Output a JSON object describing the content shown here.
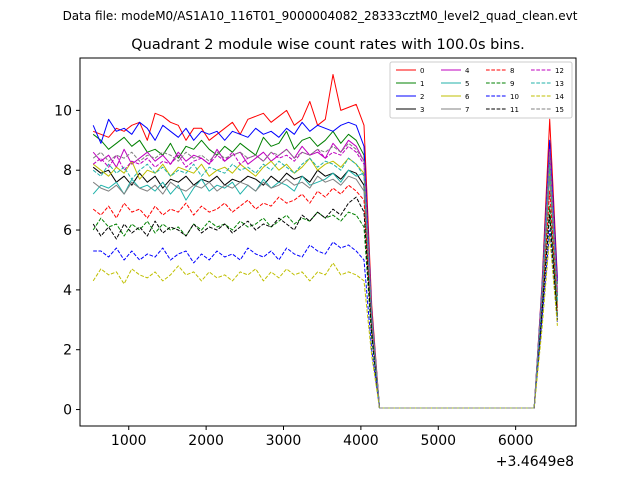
{
  "chart_data": {
    "type": "line",
    "suptitle": "Data file: modeM0/AS1A10_116T01_9000004082_28333cztM0_level2_quad_clean.evt",
    "title": "Quadrant 2 module wise count rates with 100.0s bins.",
    "xlabel": "",
    "ylabel": "",
    "x_offset_label": "+3.4649e8",
    "xlim": [
      370,
      6780
    ],
    "ylim": [
      -0.55,
      11.75
    ],
    "xticks": [
      1000,
      2000,
      3000,
      4000,
      5000,
      6000
    ],
    "yticks": [
      0,
      2,
      4,
      6,
      8,
      10
    ],
    "legend_position": "upper-right",
    "legend_columns": 4,
    "x": [
      540,
      640,
      740,
      840,
      940,
      1040,
      1140,
      1240,
      1340,
      1440,
      1540,
      1640,
      1740,
      1840,
      1940,
      2040,
      2140,
      2240,
      2340,
      2440,
      2540,
      2640,
      2740,
      2840,
      2940,
      3040,
      3140,
      3240,
      3340,
      3440,
      3540,
      3640,
      3740,
      3840,
      3940,
      4040,
      4140,
      4240,
      4340,
      4440,
      4540,
      4640,
      4740,
      4840,
      4940,
      5040,
      5140,
      5240,
      5340,
      5440,
      5540,
      5640,
      5740,
      5840,
      5940,
      6040,
      6140,
      6240,
      6340,
      6440,
      6540
    ],
    "series": [
      {
        "name": "0",
        "color": "#ff0000",
        "dash": "solid",
        "values": [
          9.3,
          9.2,
          9.1,
          9.4,
          9.3,
          9.5,
          9.6,
          9.0,
          9.9,
          9.8,
          9.6,
          9.5,
          9.0,
          9.4,
          9.4,
          9.0,
          9.2,
          9.4,
          9.6,
          9.2,
          9.7,
          9.8,
          9.9,
          9.6,
          9.8,
          10.0,
          9.5,
          9.7,
          10.3,
          9.5,
          9.7,
          11.2,
          10.0,
          10.1,
          10.2,
          9.5,
          3.5,
          0.05,
          0.05,
          0.05,
          0.05,
          0.05,
          0.05,
          0.05,
          0.05,
          0.05,
          0.05,
          0.05,
          0.05,
          0.05,
          0.05,
          0.05,
          0.05,
          0.05,
          0.05,
          0.05,
          0.05,
          0.05,
          4.2,
          9.7,
          4.4
        ]
      },
      {
        "name": "1",
        "color": "#008000",
        "dash": "solid",
        "values": [
          9.2,
          9.0,
          8.7,
          8.9,
          9.1,
          8.8,
          9.0,
          8.6,
          8.7,
          8.5,
          8.9,
          8.4,
          8.8,
          8.7,
          9.0,
          8.7,
          8.5,
          8.8,
          8.6,
          8.9,
          8.7,
          8.5,
          9.1,
          8.8,
          8.9,
          9.3,
          8.7,
          9.0,
          9.1,
          8.8,
          9.0,
          9.3,
          8.9,
          9.2,
          9.0,
          8.5,
          3.2,
          0.05,
          0.05,
          0.05,
          0.05,
          0.05,
          0.05,
          0.05,
          0.05,
          0.05,
          0.05,
          0.05,
          0.05,
          0.05,
          0.05,
          0.05,
          0.05,
          0.05,
          0.05,
          0.05,
          0.05,
          0.05,
          4.0,
          8.9,
          4.2
        ]
      },
      {
        "name": "2",
        "color": "#0000ff",
        "dash": "solid",
        "values": [
          9.5,
          8.9,
          9.7,
          9.3,
          9.4,
          9.2,
          9.6,
          9.4,
          9.0,
          9.5,
          9.3,
          9.1,
          9.4,
          9.0,
          9.3,
          9.2,
          9.3,
          9.0,
          9.3,
          9.2,
          9.1,
          9.4,
          9.2,
          9.3,
          9.1,
          9.4,
          9.2,
          9.6,
          9.3,
          9.5,
          9.4,
          9.3,
          9.5,
          9.6,
          9.5,
          8.8,
          3.3,
          0.05,
          0.05,
          0.05,
          0.05,
          0.05,
          0.05,
          0.05,
          0.05,
          0.05,
          0.05,
          0.05,
          0.05,
          0.05,
          0.05,
          0.05,
          0.05,
          0.05,
          0.05,
          0.05,
          0.05,
          0.05,
          4.1,
          9.0,
          4.3
        ]
      },
      {
        "name": "3",
        "color": "#000000",
        "dash": "solid",
        "values": [
          8.1,
          7.9,
          8.0,
          7.6,
          7.8,
          7.5,
          7.9,
          7.6,
          7.8,
          7.4,
          7.7,
          7.6,
          7.8,
          7.5,
          7.7,
          7.6,
          7.8,
          7.5,
          7.7,
          7.6,
          7.8,
          7.7,
          7.5,
          7.8,
          7.6,
          7.9,
          7.7,
          7.8,
          7.6,
          8.0,
          7.8,
          7.9,
          7.7,
          8.0,
          7.9,
          7.5,
          3.0,
          0.05,
          0.05,
          0.05,
          0.05,
          0.05,
          0.05,
          0.05,
          0.05,
          0.05,
          0.05,
          0.05,
          0.05,
          0.05,
          0.05,
          0.05,
          0.05,
          0.05,
          0.05,
          0.05,
          0.05,
          0.05,
          3.8,
          8.3,
          3.8
        ]
      },
      {
        "name": "4",
        "color": "#bf00bf",
        "dash": "solid",
        "values": [
          8.6,
          8.3,
          8.5,
          8.1,
          8.7,
          8.2,
          8.4,
          8.6,
          8.3,
          8.5,
          8.2,
          8.6,
          8.3,
          8.5,
          8.4,
          8.2,
          8.7,
          8.3,
          8.5,
          8.6,
          8.2,
          8.4,
          8.6,
          8.3,
          8.5,
          8.7,
          8.4,
          8.8,
          8.5,
          8.6,
          8.4,
          8.9,
          8.6,
          9.0,
          8.8,
          8.3,
          3.2,
          0.05,
          0.05,
          0.05,
          0.05,
          0.05,
          0.05,
          0.05,
          0.05,
          0.05,
          0.05,
          0.05,
          0.05,
          0.05,
          0.05,
          0.05,
          0.05,
          0.05,
          0.05,
          0.05,
          0.05,
          0.05,
          3.9,
          8.7,
          4.0
        ]
      },
      {
        "name": "5",
        "color": "#20b2aa",
        "dash": "solid",
        "values": [
          7.2,
          7.5,
          7.4,
          7.6,
          7.2,
          7.7,
          7.4,
          7.5,
          7.3,
          7.6,
          7.2,
          7.5,
          7.0,
          7.4,
          7.7,
          7.3,
          7.5,
          7.4,
          7.6,
          7.2,
          7.5,
          7.3,
          7.7,
          7.4,
          7.6,
          7.5,
          7.3,
          7.8,
          7.5,
          7.6,
          7.7,
          7.9,
          7.6,
          8.0,
          7.8,
          7.9,
          2.9,
          0.05,
          0.05,
          0.05,
          0.05,
          0.05,
          0.05,
          0.05,
          0.05,
          0.05,
          0.05,
          0.05,
          0.05,
          0.05,
          0.05,
          0.05,
          0.05,
          0.05,
          0.05,
          0.05,
          0.05,
          0.05,
          3.6,
          8.1,
          3.6
        ]
      },
      {
        "name": "6",
        "color": "#bfbf00",
        "dash": "solid",
        "values": [
          8.2,
          8.0,
          7.8,
          8.1,
          7.9,
          8.3,
          7.7,
          8.0,
          7.9,
          8.2,
          7.8,
          8.1,
          8.0,
          7.9,
          8.2,
          7.8,
          8.0,
          8.1,
          7.9,
          8.2,
          8.0,
          7.8,
          8.1,
          8.3,
          8.0,
          8.2,
          7.9,
          8.1,
          8.4,
          8.0,
          8.2,
          8.3,
          8.1,
          8.4,
          8.2,
          7.9,
          3.1,
          0.05,
          0.05,
          0.05,
          0.05,
          0.05,
          0.05,
          0.05,
          0.05,
          0.05,
          0.05,
          0.05,
          0.05,
          0.05,
          0.05,
          0.05,
          0.05,
          0.05,
          0.05,
          0.05,
          0.05,
          0.05,
          3.8,
          8.0,
          3.5
        ]
      },
      {
        "name": "7",
        "color": "#808080",
        "dash": "solid",
        "values": [
          7.6,
          7.4,
          7.3,
          7.5,
          7.2,
          7.6,
          7.4,
          7.3,
          7.5,
          7.2,
          7.6,
          7.4,
          7.3,
          7.5,
          7.4,
          7.6,
          7.3,
          7.5,
          7.4,
          7.6,
          7.5,
          7.3,
          7.6,
          7.4,
          7.5,
          7.7,
          7.5,
          7.6,
          7.4,
          7.8,
          7.6,
          7.7,
          7.5,
          7.8,
          7.7,
          7.3,
          2.8,
          0.05,
          0.05,
          0.05,
          0.05,
          0.05,
          0.05,
          0.05,
          0.05,
          0.05,
          0.05,
          0.05,
          0.05,
          0.05,
          0.05,
          0.05,
          0.05,
          0.05,
          0.05,
          0.05,
          0.05,
          0.05,
          3.5,
          7.8,
          3.4
        ]
      },
      {
        "name": "8",
        "color": "#ff0000",
        "dash": "dashed",
        "values": [
          6.7,
          6.5,
          6.8,
          6.4,
          6.9,
          6.6,
          6.7,
          6.4,
          6.8,
          6.5,
          6.7,
          6.6,
          6.9,
          6.5,
          6.8,
          6.6,
          6.7,
          6.9,
          6.6,
          6.8,
          7.0,
          6.7,
          6.9,
          6.8,
          7.1,
          6.9,
          7.0,
          7.2,
          6.9,
          7.3,
          7.1,
          7.4,
          7.2,
          7.5,
          7.3,
          7.0,
          2.7,
          0.05,
          0.05,
          0.05,
          0.05,
          0.05,
          0.05,
          0.05,
          0.05,
          0.05,
          0.05,
          0.05,
          0.05,
          0.05,
          0.05,
          0.05,
          0.05,
          0.05,
          0.05,
          0.05,
          0.05,
          0.05,
          3.4,
          7.3,
          3.3
        ]
      },
      {
        "name": "9",
        "color": "#008000",
        "dash": "dashed",
        "values": [
          6.0,
          6.4,
          6.1,
          6.2,
          5.8,
          6.2,
          6.0,
          6.3,
          5.9,
          6.2,
          6.0,
          6.1,
          5.8,
          6.2,
          6.0,
          6.3,
          6.1,
          6.2,
          6.0,
          6.3,
          6.1,
          6.2,
          6.4,
          6.1,
          6.3,
          6.5,
          6.2,
          6.4,
          6.3,
          6.6,
          6.4,
          6.5,
          6.3,
          6.6,
          6.5,
          6.1,
          2.4,
          0.05,
          0.05,
          0.05,
          0.05,
          0.05,
          0.05,
          0.05,
          0.05,
          0.05,
          0.05,
          0.05,
          0.05,
          0.05,
          0.05,
          0.05,
          0.05,
          0.05,
          0.05,
          0.05,
          0.05,
          0.05,
          3.2,
          6.8,
          3.1
        ]
      },
      {
        "name": "10",
        "color": "#0000ff",
        "dash": "dashed",
        "values": [
          5.3,
          5.3,
          5.1,
          5.4,
          5.0,
          5.3,
          5.0,
          5.2,
          5.1,
          5.4,
          5.0,
          5.2,
          5.3,
          4.9,
          5.2,
          5.0,
          5.3,
          5.1,
          5.2,
          5.0,
          5.4,
          5.2,
          5.1,
          5.3,
          5.0,
          5.4,
          5.2,
          5.1,
          5.5,
          5.3,
          5.2,
          5.6,
          5.4,
          5.5,
          5.3,
          5.0,
          2.0,
          0.05,
          0.05,
          0.05,
          0.05,
          0.05,
          0.05,
          0.05,
          0.05,
          0.05,
          0.05,
          0.05,
          0.05,
          0.05,
          0.05,
          0.05,
          0.05,
          0.05,
          0.05,
          0.05,
          0.05,
          0.05,
          3.0,
          6.0,
          2.9
        ]
      },
      {
        "name": "11",
        "color": "#000000",
        "dash": "dashed",
        "values": [
          6.2,
          5.8,
          6.1,
          5.7,
          6.2,
          5.9,
          6.1,
          5.8,
          6.3,
          5.9,
          6.1,
          6.0,
          5.8,
          6.2,
          5.9,
          6.1,
          6.0,
          6.2,
          5.9,
          6.1,
          6.3,
          6.0,
          6.2,
          6.1,
          6.4,
          6.2,
          6.0,
          6.5,
          6.3,
          6.6,
          6.4,
          6.7,
          6.5,
          6.9,
          7.1,
          6.6,
          2.6,
          0.05,
          0.05,
          0.05,
          0.05,
          0.05,
          0.05,
          0.05,
          0.05,
          0.05,
          0.05,
          0.05,
          0.05,
          0.05,
          0.05,
          0.05,
          0.05,
          0.05,
          0.05,
          0.05,
          0.05,
          0.05,
          3.3,
          6.5,
          3.0
        ]
      },
      {
        "name": "12",
        "color": "#bf00bf",
        "dash": "dashed",
        "values": [
          8.2,
          8.4,
          8.1,
          8.5,
          8.0,
          8.3,
          8.2,
          8.4,
          8.1,
          8.3,
          8.2,
          8.5,
          8.1,
          8.3,
          8.4,
          8.2,
          8.5,
          8.3,
          8.6,
          8.2,
          8.4,
          8.5,
          8.3,
          8.6,
          8.4,
          8.5,
          8.3,
          8.6,
          8.5,
          8.7,
          8.4,
          8.6,
          8.5,
          8.8,
          8.6,
          8.2,
          3.1,
          0.05,
          0.05,
          0.05,
          0.05,
          0.05,
          0.05,
          0.05,
          0.05,
          0.05,
          0.05,
          0.05,
          0.05,
          0.05,
          0.05,
          0.05,
          0.05,
          0.05,
          0.05,
          0.05,
          0.05,
          0.05,
          3.9,
          8.5,
          3.9
        ]
      },
      {
        "name": "13",
        "color": "#20b2aa",
        "dash": "dashed",
        "values": [
          8.0,
          7.8,
          8.2,
          7.9,
          8.1,
          7.7,
          8.0,
          8.2,
          7.9,
          8.1,
          7.8,
          8.0,
          7.9,
          8.2,
          7.8,
          8.1,
          8.0,
          7.9,
          8.2,
          8.0,
          8.1,
          7.9,
          8.2,
          8.0,
          8.3,
          8.1,
          7.9,
          8.2,
          8.4,
          8.1,
          8.3,
          8.2,
          8.0,
          8.4,
          8.2,
          7.8,
          3.0,
          0.05,
          0.05,
          0.05,
          0.05,
          0.05,
          0.05,
          0.05,
          0.05,
          0.05,
          0.05,
          0.05,
          0.05,
          0.05,
          0.05,
          0.05,
          0.05,
          0.05,
          0.05,
          0.05,
          0.05,
          0.05,
          3.7,
          8.2,
          3.6
        ]
      },
      {
        "name": "14",
        "color": "#bfbf00",
        "dash": "dashed",
        "values": [
          4.3,
          4.7,
          4.5,
          4.6,
          4.2,
          4.7,
          4.5,
          4.4,
          4.6,
          4.3,
          4.5,
          4.8,
          4.5,
          4.6,
          4.3,
          4.6,
          4.4,
          4.5,
          4.3,
          4.6,
          4.5,
          4.7,
          4.3,
          4.6,
          4.4,
          4.7,
          4.5,
          4.6,
          4.3,
          4.6,
          4.5,
          4.9,
          4.5,
          4.6,
          4.5,
          4.3,
          1.8,
          0.05,
          0.05,
          0.05,
          0.05,
          0.05,
          0.05,
          0.05,
          0.05,
          0.05,
          0.05,
          0.05,
          0.05,
          0.05,
          0.05,
          0.05,
          0.05,
          0.05,
          0.05,
          0.05,
          0.05,
          0.05,
          2.7,
          5.8,
          2.8
        ]
      },
      {
        "name": "15",
        "color": "#808080",
        "dash": "dashed",
        "values": [
          8.4,
          8.6,
          8.3,
          8.5,
          8.4,
          8.6,
          8.3,
          8.5,
          8.4,
          8.6,
          8.5,
          8.3,
          8.6,
          8.4,
          8.5,
          8.3,
          8.6,
          8.4,
          8.5,
          8.6,
          8.4,
          8.5,
          8.3,
          8.6,
          8.5,
          8.7,
          8.4,
          8.6,
          8.5,
          8.7,
          8.6,
          8.8,
          8.6,
          8.9,
          8.7,
          8.3,
          3.2,
          0.05,
          0.05,
          0.05,
          0.05,
          0.05,
          0.05,
          0.05,
          0.05,
          0.05,
          0.05,
          0.05,
          0.05,
          0.05,
          0.05,
          0.05,
          0.05,
          0.05,
          0.05,
          0.05,
          0.05,
          0.05,
          4.0,
          8.6,
          3.9
        ]
      }
    ]
  }
}
